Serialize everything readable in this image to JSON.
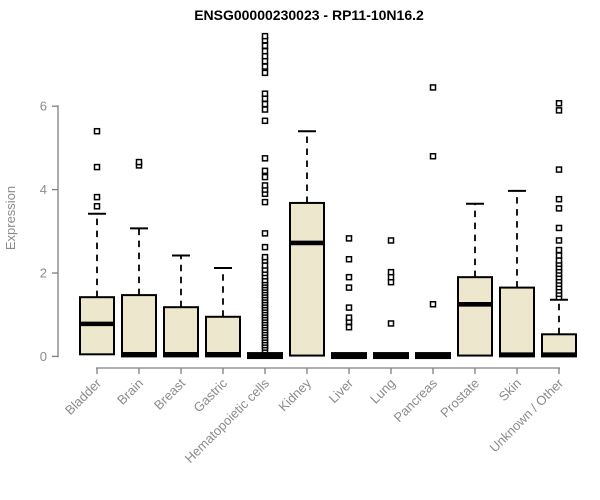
{
  "figure": {
    "background": "#ffffff"
  },
  "chart_data": {
    "type": "boxplot",
    "title": "ENSG00000230023 - RP11-10N16.2",
    "xlabel": "",
    "ylabel": "Expression",
    "ylim": [
      0,
      6
    ],
    "yticks": [
      0,
      2,
      4,
      6
    ],
    "grid": false,
    "legend": "none",
    "colors": {
      "box_fill": "#EDE8CD",
      "box_stroke": "#000000",
      "median": "#000000",
      "whisker": "#000000",
      "outlier_stroke": "#000000",
      "outlier_fill": "#ffffff",
      "axis_line": "#7f7f7f",
      "tick_text": "#8b8b8b",
      "title_text": "#000000",
      "background": "#ffffff"
    },
    "categories": [
      "Bladder",
      "Brain",
      "Breast",
      "Gastric",
      "Hematopoietic cells",
      "Kidney",
      "Liver",
      "Lung",
      "Pancreas",
      "Prostate",
      "Skin",
      "Unknown / Other"
    ],
    "boxes": [
      {
        "label": "Bladder",
        "q1": 0.05,
        "median": 0.78,
        "q3": 1.42,
        "whisker_low": 0.05,
        "whisker_high": 3.42,
        "outliers": [
          3.6,
          3.82,
          4.54,
          5.4
        ]
      },
      {
        "label": "Brain",
        "q1": 0.0,
        "median": 0.05,
        "q3": 1.47,
        "whisker_low": 0.0,
        "whisker_high": 3.07,
        "outliers": [
          4.58,
          4.66
        ]
      },
      {
        "label": "Breast",
        "q1": 0.0,
        "median": 0.05,
        "q3": 1.18,
        "whisker_low": 0.0,
        "whisker_high": 2.42,
        "outliers": []
      },
      {
        "label": "Gastric",
        "q1": 0.0,
        "median": 0.05,
        "q3": 0.95,
        "whisker_low": 0.0,
        "whisker_high": 2.12,
        "outliers": []
      },
      {
        "label": "Hematopoietic cells",
        "q1": 0.0,
        "median": 0.02,
        "q3": 0.05,
        "whisker_low": 0.0,
        "whisker_high": 0.05,
        "outliers": [
          0.15,
          0.21,
          0.27,
          0.33,
          0.39,
          0.45,
          0.51,
          0.57,
          0.63,
          0.69,
          0.75,
          0.81,
          0.87,
          0.93,
          0.99,
          1.05,
          1.11,
          1.17,
          1.23,
          1.29,
          1.35,
          1.41,
          1.47,
          1.53,
          1.59,
          1.65,
          1.71,
          1.77,
          1.83,
          1.92,
          2.0,
          2.08,
          2.18,
          2.3,
          2.38,
          2.62,
          2.95,
          3.7,
          3.9,
          4.0,
          4.1,
          4.3,
          4.45,
          4.75,
          5.65,
          5.92,
          6.05,
          6.18,
          6.3,
          6.8,
          6.95,
          7.08,
          7.2,
          7.32,
          7.45,
          7.58,
          7.68
        ]
      },
      {
        "label": "Kidney",
        "q1": 0.02,
        "median": 2.72,
        "q3": 3.68,
        "whisker_low": 0.02,
        "whisker_high": 5.4,
        "outliers": []
      },
      {
        "label": "Liver",
        "q1": 0.0,
        "median": 0.02,
        "q3": 0.05,
        "whisker_low": 0.0,
        "whisker_high": 0.05,
        "outliers": [
          0.7,
          0.83,
          0.93,
          1.17,
          1.65,
          1.9,
          2.33,
          2.83
        ]
      },
      {
        "label": "Lung",
        "q1": 0.0,
        "median": 0.02,
        "q3": 0.05,
        "whisker_low": 0.0,
        "whisker_high": 0.05,
        "outliers": [
          0.79,
          1.78,
          1.9,
          2.02,
          2.78
        ]
      },
      {
        "label": "Pancreas",
        "q1": 0.0,
        "median": 0.02,
        "q3": 0.05,
        "whisker_low": 0.0,
        "whisker_high": 0.05,
        "outliers": [
          1.25,
          4.8,
          6.45
        ]
      },
      {
        "label": "Prostate",
        "q1": 0.02,
        "median": 1.25,
        "q3": 1.9,
        "whisker_low": 0.02,
        "whisker_high": 3.66,
        "outliers": []
      },
      {
        "label": "Skin",
        "q1": 0.0,
        "median": 0.04,
        "q3": 1.65,
        "whisker_low": 0.0,
        "whisker_high": 3.97,
        "outliers": []
      },
      {
        "label": "Unknown / Other",
        "q1": 0.0,
        "median": 0.04,
        "q3": 0.53,
        "whisker_low": 0.0,
        "whisker_high": 1.36,
        "outliers": [
          1.42,
          1.5,
          1.58,
          1.66,
          1.74,
          1.82,
          1.9,
          1.98,
          2.06,
          2.14,
          2.22,
          2.3,
          2.42,
          2.55,
          2.78,
          3.08,
          3.55,
          3.77,
          4.48,
          5.9,
          6.07
        ]
      }
    ]
  }
}
